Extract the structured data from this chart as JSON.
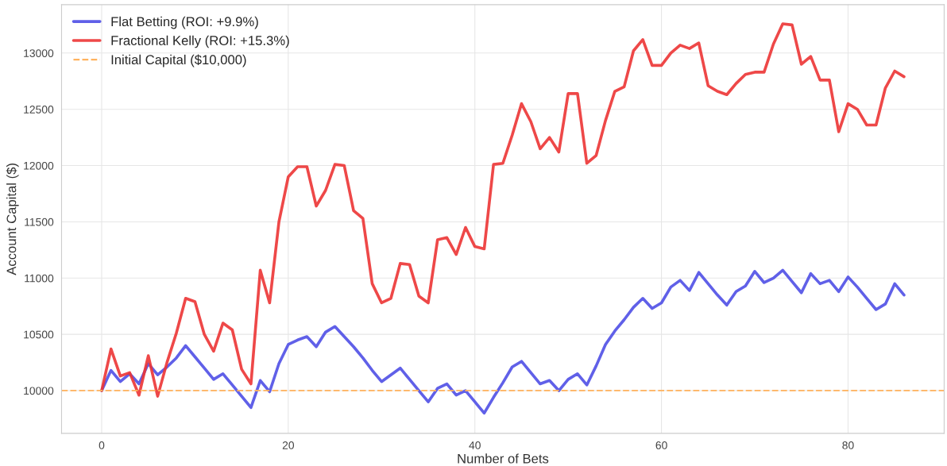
{
  "chart_data": {
    "type": "line",
    "xlabel": "Number of Bets",
    "ylabel": "Account Capital ($)",
    "x": [
      0,
      1,
      2,
      3,
      4,
      5,
      6,
      7,
      8,
      9,
      10,
      11,
      12,
      13,
      14,
      15,
      16,
      17,
      18,
      19,
      20,
      21,
      22,
      23,
      24,
      25,
      26,
      27,
      28,
      29,
      30,
      31,
      32,
      33,
      34,
      35,
      36,
      37,
      38,
      39,
      40,
      41,
      42,
      43,
      44,
      45,
      46,
      47,
      48,
      49,
      50,
      51,
      52,
      53,
      54,
      55,
      56,
      57,
      58,
      59,
      60,
      61,
      62,
      63,
      64,
      65,
      66,
      67,
      68,
      69,
      70,
      71,
      72,
      73,
      74,
      75,
      76,
      77,
      78,
      79,
      80,
      81,
      82,
      83,
      84,
      85,
      86
    ],
    "series": [
      {
        "name": "Flat Betting (ROI: +9.9%)",
        "color": "#4f4fe6",
        "values": [
          10000,
          10180,
          10080,
          10150,
          10060,
          10240,
          10140,
          10210,
          10290,
          10400,
          10300,
          10200,
          10100,
          10150,
          10050,
          9950,
          9850,
          10090,
          9990,
          10240,
          10410,
          10450,
          10480,
          10390,
          10520,
          10570,
          10480,
          10390,
          10290,
          10180,
          10080,
          10140,
          10200,
          10100,
          10000,
          9900,
          10020,
          10060,
          9960,
          10000,
          9900,
          9800,
          9940,
          10070,
          10210,
          10260,
          10160,
          10060,
          10090,
          10000,
          10100,
          10150,
          10050,
          10220,
          10410,
          10530,
          10630,
          10740,
          10820,
          10730,
          10780,
          10920,
          10980,
          10890,
          11050,
          10950,
          10850,
          10760,
          10880,
          10930,
          11060,
          10960,
          11000,
          11070,
          10970,
          10870,
          11040,
          10950,
          10980,
          10880,
          11010,
          10920,
          10820,
          10720,
          10770,
          10950,
          10850
        ]
      },
      {
        "name": "Fractional Kelly (ROI: +15.3%)",
        "color": "#ec3434",
        "values": [
          10000,
          10370,
          10130,
          10160,
          9960,
          10310,
          9950,
          10250,
          10510,
          10820,
          10790,
          10500,
          10350,
          10600,
          10540,
          10190,
          10060,
          11070,
          10780,
          11500,
          11900,
          11990,
          11990,
          11640,
          11780,
          12010,
          12000,
          11600,
          11530,
          10950,
          10780,
          10820,
          11130,
          11120,
          10840,
          10780,
          11340,
          11360,
          11210,
          11450,
          11280,
          11260,
          12010,
          12020,
          12270,
          12550,
          12390,
          12150,
          12250,
          12120,
          12640,
          12640,
          12020,
          12090,
          12400,
          12660,
          12700,
          13020,
          13120,
          12890,
          12890,
          13000,
          13070,
          13040,
          13090,
          12710,
          12660,
          12630,
          12730,
          12810,
          12830,
          12830,
          13080,
          13260,
          13250,
          12900,
          12970,
          12760,
          12760,
          12300,
          12550,
          12500,
          12360,
          12360,
          12690,
          12840,
          12790
        ]
      }
    ],
    "ref_lines": [
      {
        "axis": "y",
        "value": 10000,
        "label": "Initial Capital ($10,000)",
        "color": "#ffb25e",
        "line_style": "dashed"
      }
    ],
    "xlim": [
      -4.3,
      90.3
    ],
    "ylim": [
      9620,
      13430
    ],
    "xticks": [
      0,
      20,
      40,
      60,
      80
    ],
    "yticks": [
      10000,
      10500,
      11000,
      11500,
      12000,
      12500,
      13000
    ],
    "grid": true,
    "legend": "top left",
    "line_style": "solid",
    "marker": "none"
  }
}
